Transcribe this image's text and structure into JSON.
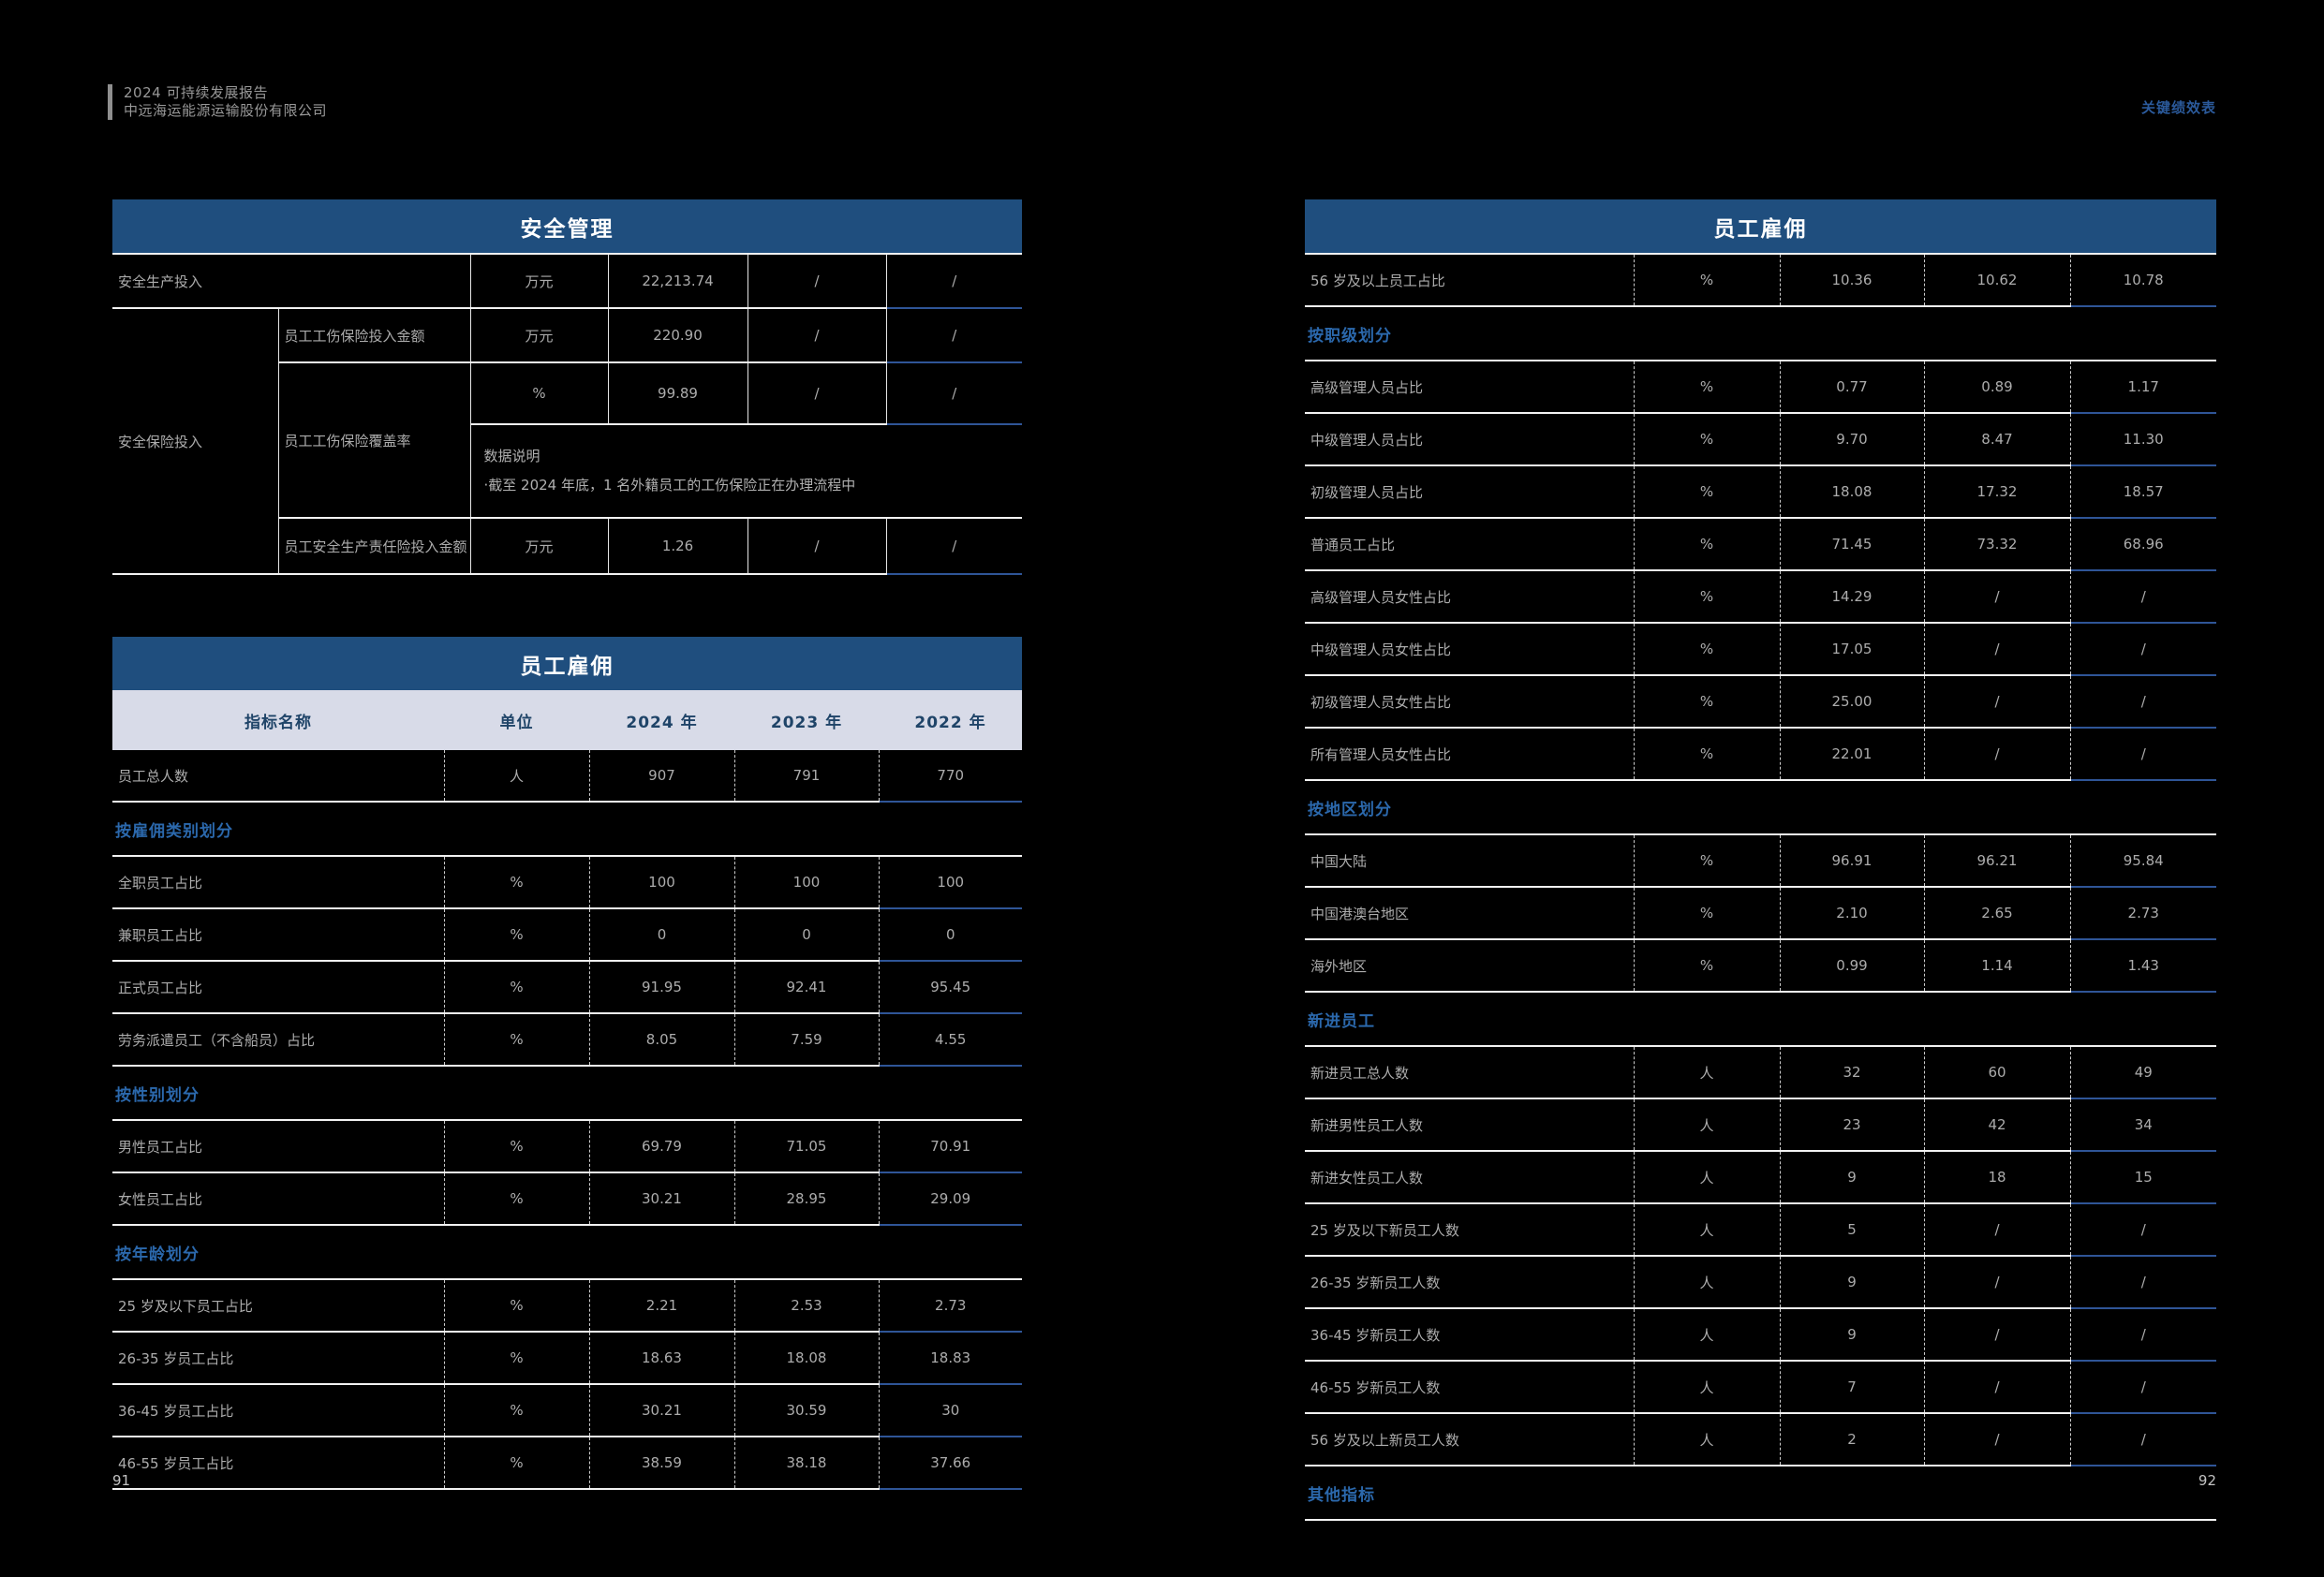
{
  "page_header": {
    "report_title": "2024 可持续发展报告",
    "company_name": "中远海运能源运输股份有限公司",
    "corner_tab": "关键绩效表"
  },
  "footer": {
    "left_page_number": "91",
    "right_page_number": "92"
  },
  "colors": {
    "background": "#000000",
    "table_title_bar": "#1F4E7E",
    "column_header_bg": "#D8DBE8",
    "column_header_text": "#1F4468",
    "section_label_text": "#2B68AC",
    "body_text": "#ACACAC",
    "border_white": "#F2F2F2",
    "border_blue": "#2F5597",
    "corner_tab_text": "#2B5A9B"
  },
  "safety_table": {
    "title": "安全管理",
    "production_label": "安全生产投入",
    "production_unit": "万元",
    "production_2024": "22,213.74",
    "production_2023": "/",
    "production_2022": "/",
    "insurance_group_label": "安全保险投入",
    "injury_amount_label": "员工工伤保险投入金额",
    "injury_amount_unit": "万元",
    "injury_amount_2024": "220.90",
    "injury_amount_2023": "/",
    "injury_amount_2022": "/",
    "coverage_label": "员工工伤保险覆盖率",
    "coverage_unit": "%",
    "coverage_2024": "99.89",
    "coverage_2023": "/",
    "coverage_2022": "/",
    "note_heading": "数据说明",
    "note_body": "·截至 2024 年底，1 名外籍员工的工伤保险正在办理流程中",
    "liability_label": "员工安全生产责任险投入金额",
    "liability_unit": "万元",
    "liability_2024": "1.26",
    "liability_2023": "/",
    "liability_2022": "/"
  },
  "employment_table_left": {
    "title": "员工雇佣",
    "columns": [
      "指标名称",
      "单位",
      "2024 年",
      "2023 年",
      "2022 年"
    ],
    "rows": [
      {
        "type": "data",
        "label": "员工总人数",
        "unit": "人",
        "y2024": "907",
        "y2023": "791",
        "y2022": "770"
      },
      {
        "type": "section",
        "label": "按雇佣类别划分"
      },
      {
        "type": "data",
        "label": "全职员工占比",
        "unit": "%",
        "y2024": "100",
        "y2023": "100",
        "y2022": "100"
      },
      {
        "type": "data",
        "label": "兼职员工占比",
        "unit": "%",
        "y2024": "0",
        "y2023": "0",
        "y2022": "0"
      },
      {
        "type": "data",
        "label": "正式员工占比",
        "unit": "%",
        "y2024": "91.95",
        "y2023": "92.41",
        "y2022": "95.45"
      },
      {
        "type": "data",
        "label": "劳务派遣员工（不含船员）占比",
        "unit": "%",
        "y2024": "8.05",
        "y2023": "7.59",
        "y2022": "4.55"
      },
      {
        "type": "section",
        "label": "按性别划分"
      },
      {
        "type": "data",
        "label": "男性员工占比",
        "unit": "%",
        "y2024": "69.79",
        "y2023": "71.05",
        "y2022": "70.91"
      },
      {
        "type": "data",
        "label": "女性员工占比",
        "unit": "%",
        "y2024": "30.21",
        "y2023": "28.95",
        "y2022": "29.09"
      },
      {
        "type": "section",
        "label": "按年龄划分"
      },
      {
        "type": "data",
        "label": "25 岁及以下员工占比",
        "unit": "%",
        "y2024": "2.21",
        "y2023": "2.53",
        "y2022": "2.73"
      },
      {
        "type": "data",
        "label": "26-35 岁员工占比",
        "unit": "%",
        "y2024": "18.63",
        "y2023": "18.08",
        "y2022": "18.83"
      },
      {
        "type": "data",
        "label": "36-45 岁员工占比",
        "unit": "%",
        "y2024": "30.21",
        "y2023": "30.59",
        "y2022": "30"
      },
      {
        "type": "data",
        "label": "46-55 岁员工占比",
        "unit": "%",
        "y2024": "38.59",
        "y2023": "38.18",
        "y2022": "37.66"
      }
    ]
  },
  "employment_table_right": {
    "title": "员工雇佣",
    "rows": [
      {
        "type": "data",
        "label": "56 岁及以上员工占比",
        "unit": "%",
        "y2024": "10.36",
        "y2023": "10.62",
        "y2022": "10.78"
      },
      {
        "type": "section",
        "label": "按职级划分"
      },
      {
        "type": "data",
        "label": "高级管理人员占比",
        "unit": "%",
        "y2024": "0.77",
        "y2023": "0.89",
        "y2022": "1.17"
      },
      {
        "type": "data",
        "label": "中级管理人员占比",
        "unit": "%",
        "y2024": "9.70",
        "y2023": "8.47",
        "y2022": "11.30"
      },
      {
        "type": "data",
        "label": "初级管理人员占比",
        "unit": "%",
        "y2024": "18.08",
        "y2023": "17.32",
        "y2022": "18.57"
      },
      {
        "type": "data",
        "label": "普通员工占比",
        "unit": "%",
        "y2024": "71.45",
        "y2023": "73.32",
        "y2022": "68.96"
      },
      {
        "type": "data",
        "label": "高级管理人员女性占比",
        "unit": "%",
        "y2024": "14.29",
        "y2023": "/",
        "y2022": "/"
      },
      {
        "type": "data",
        "label": "中级管理人员女性占比",
        "unit": "%",
        "y2024": "17.05",
        "y2023": "/",
        "y2022": "/"
      },
      {
        "type": "data",
        "label": "初级管理人员女性占比",
        "unit": "%",
        "y2024": "25.00",
        "y2023": "/",
        "y2022": "/"
      },
      {
        "type": "data",
        "label": "所有管理人员女性占比",
        "unit": "%",
        "y2024": "22.01",
        "y2023": "/",
        "y2022": "/"
      },
      {
        "type": "section",
        "label": "按地区划分"
      },
      {
        "type": "data",
        "label": "中国大陆",
        "unit": "%",
        "y2024": "96.91",
        "y2023": "96.21",
        "y2022": "95.84"
      },
      {
        "type": "data",
        "label": "中国港澳台地区",
        "unit": "%",
        "y2024": "2.10",
        "y2023": "2.65",
        "y2022": "2.73"
      },
      {
        "type": "data",
        "label": "海外地区",
        "unit": "%",
        "y2024": "0.99",
        "y2023": "1.14",
        "y2022": "1.43"
      },
      {
        "type": "section",
        "label": "新进员工"
      },
      {
        "type": "data",
        "label": "新进员工总人数",
        "unit": "人",
        "y2024": "32",
        "y2023": "60",
        "y2022": "49"
      },
      {
        "type": "data",
        "label": "新进男性员工人数",
        "unit": "人",
        "y2024": "23",
        "y2023": "42",
        "y2022": "34"
      },
      {
        "type": "data",
        "label": "新进女性员工人数",
        "unit": "人",
        "y2024": "9",
        "y2023": "18",
        "y2022": "15"
      },
      {
        "type": "data",
        "label": "25 岁及以下新员工人数",
        "unit": "人",
        "y2024": "5",
        "y2023": "/",
        "y2022": "/"
      },
      {
        "type": "data",
        "label": "26-35 岁新员工人数",
        "unit": "人",
        "y2024": "9",
        "y2023": "/",
        "y2022": "/"
      },
      {
        "type": "data",
        "label": "36-45 岁新员工人数",
        "unit": "人",
        "y2024": "9",
        "y2023": "/",
        "y2022": "/"
      },
      {
        "type": "data",
        "label": "46-55 岁新员工人数",
        "unit": "人",
        "y2024": "7",
        "y2023": "/",
        "y2022": "/"
      },
      {
        "type": "data",
        "label": "56 岁及以上新员工人数",
        "unit": "人",
        "y2024": "2",
        "y2023": "/",
        "y2022": "/"
      },
      {
        "type": "section",
        "label": "其他指标"
      }
    ]
  }
}
